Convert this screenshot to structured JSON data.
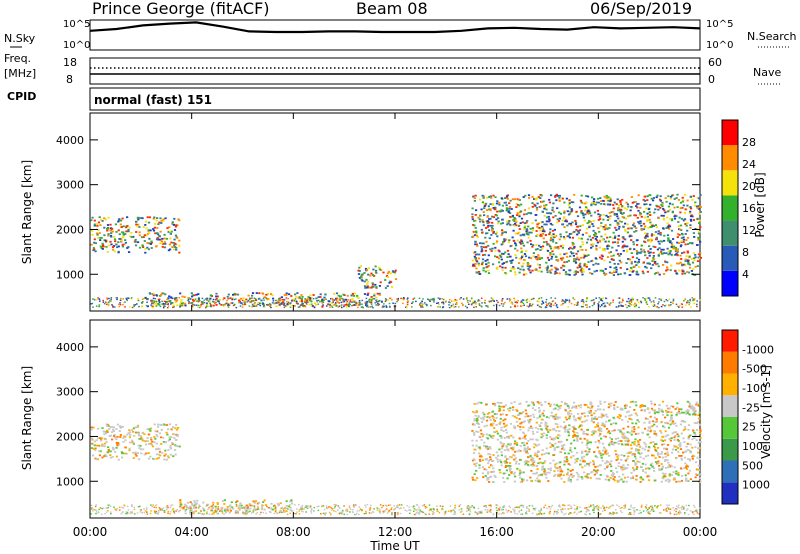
{
  "title": {
    "station": "Prince George (fitACF)",
    "beam": "Beam 08",
    "date": "06/Sep/2019"
  },
  "top_strip": {
    "left_label": "N.Sky",
    "right_label": "N.Search",
    "left_ticks": [
      "10^5",
      "10^0"
    ],
    "right_ticks": [
      "10^5",
      "10^0"
    ]
  },
  "freq_strip": {
    "left_label_line1": "Freq.",
    "left_label_line2": "[MHz]",
    "right_label": "Nave",
    "left_ticks": [
      "18",
      "8"
    ],
    "right_ticks": [
      "60",
      "0"
    ]
  },
  "cpid": {
    "label": "CPID",
    "mode_text": "normal (fast) 151"
  },
  "chart_data": [
    {
      "type": "heatmap",
      "title": "",
      "ylabel": "Slant Range [km]",
      "xlabel": "",
      "ylim": [
        180,
        4600
      ],
      "yticks": [
        "1000",
        "2000",
        "3000",
        "4000"
      ],
      "colorbar": {
        "label": "Power [dB]",
        "ticks": [
          "4",
          "8",
          "12",
          "16",
          "20",
          "24",
          "28"
        ],
        "colors": [
          "#0000ff",
          "#2a5ab8",
          "#3f8f6f",
          "#33b02c",
          "#f4e20a",
          "#ff8c00",
          "#ff0000"
        ]
      },
      "echo_regions": [
        {
          "name": "ionospheric early",
          "x_hours": [
            0.0,
            3.5
          ],
          "range_km": [
            1500,
            2300
          ],
          "level_db": 14
        },
        {
          "name": "mid ionospheric",
          "x_hours": [
            10.5,
            12.0
          ],
          "range_km": [
            700,
            1200
          ],
          "level_db": 16
        },
        {
          "name": "ground scatter",
          "x_hours": [
            2.0,
            11.5
          ],
          "range_km": [
            300,
            600
          ],
          "level_db": 20
        },
        {
          "name": "late arc",
          "x_hours": [
            15.0,
            24.0
          ],
          "range_km": [
            1000,
            2800
          ],
          "level_db": 6
        }
      ]
    },
    {
      "type": "heatmap",
      "title": "",
      "ylabel": "Slant Range [km]",
      "xlabel": "Time UT",
      "ylim": [
        180,
        4600
      ],
      "yticks": [
        "1000",
        "2000",
        "3000",
        "4000"
      ],
      "xticks": [
        "00:00",
        "04:00",
        "08:00",
        "12:00",
        "16:00",
        "20:00",
        "00:00"
      ],
      "colorbar": {
        "label": "Velocity [m s-1]",
        "ticks": [
          "1000",
          "500",
          "100",
          "25",
          "-25",
          "-100",
          "-500",
          "-1000"
        ],
        "colors": [
          "#1f2fbf",
          "#2f6fb8",
          "#3a9a4a",
          "#55c83a",
          "#c8c8c8",
          "#ffb000",
          "#ff7b00",
          "#ff1a00"
        ]
      },
      "echo_regions": [
        {
          "name": "ionospheric early",
          "x_hours": [
            0.0,
            3.5
          ],
          "range_km": [
            1500,
            2300
          ],
          "velocity": 0
        },
        {
          "name": "ground scatter",
          "x_hours": [
            3.5,
            8.0
          ],
          "range_km": [
            300,
            600
          ],
          "velocity": -150
        },
        {
          "name": "late arc",
          "x_hours": [
            15.0,
            24.0
          ],
          "range_km": [
            1000,
            2800
          ],
          "velocity": 0
        }
      ]
    }
  ],
  "strip_series": {
    "noise_sky": [
      3.2,
      3.5,
      4.1,
      4.4,
      4.6,
      3.9,
      3.1,
      3.0,
      3.0,
      3.1,
      3.1,
      3.0,
      3.0,
      3.0,
      3.2,
      3.6,
      3.7,
      3.5,
      3.4,
      3.8,
      3.6,
      3.7,
      3.8,
      3.6
    ]
  }
}
